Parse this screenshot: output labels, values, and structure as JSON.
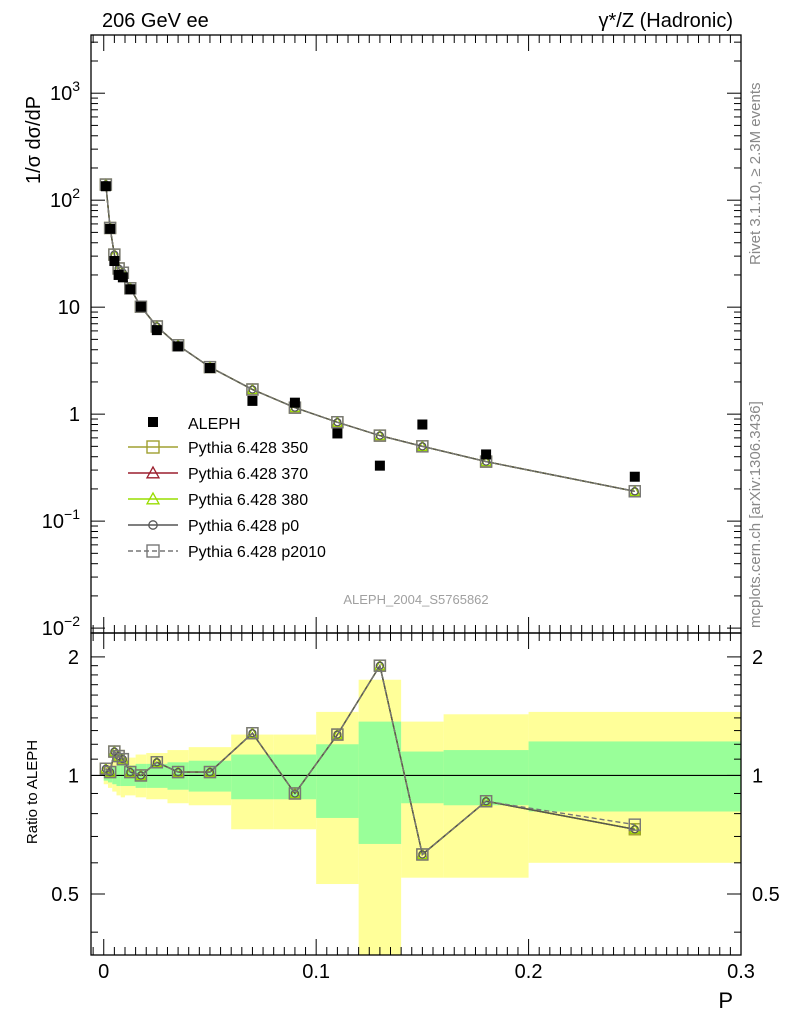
{
  "header": {
    "left": "206 GeV ee",
    "right": "γ*/Z (Hadronic)"
  },
  "side": {
    "rivet": "Rivet 3.1.10, ≥ 2.3M events",
    "mcplots": "mcplots.cern.ch [arXiv:1306.3436]"
  },
  "analysis_label": "ALEPH_2004_S5765862",
  "colors": {
    "green_band": "#99ff99",
    "yellow_band": "#ffff99",
    "p350": "#a0a030",
    "p370": "#9b1f2e",
    "p380": "#99dd00",
    "p0": "#555555",
    "p2010": "#777777"
  },
  "chart_data": {
    "type": "line",
    "main": {
      "ylabel": "1/σ dσ/dP",
      "yscale": "log",
      "ylim": [
        0.009,
        3500
      ],
      "yticks": [
        {
          "v": 0.01,
          "base": "10",
          "exp": "−2"
        },
        {
          "v": 0.1,
          "base": "10",
          "exp": "−1"
        },
        {
          "v": 1,
          "base": "1",
          "exp": ""
        },
        {
          "v": 10,
          "base": "10",
          "exp": ""
        },
        {
          "v": 100,
          "base": "10",
          "exp": "2"
        },
        {
          "v": 1000,
          "base": "10",
          "exp": "3"
        }
      ],
      "data": {
        "name": "ALEPH",
        "x": [
          0.001,
          0.003,
          0.005,
          0.007,
          0.009,
          0.0125,
          0.0175,
          0.025,
          0.035,
          0.05,
          0.07,
          0.09,
          0.11,
          0.13,
          0.15,
          0.18,
          0.25
        ],
        "y": [
          135,
          54,
          27,
          20,
          19,
          14.7,
          10.1,
          6.1,
          4.3,
          2.7,
          1.33,
          1.28,
          0.66,
          0.33,
          0.8,
          0.42,
          0.26
        ]
      },
      "series": [
        {
          "name": "Pythia 6.428 350",
          "marker": "square",
          "color": "p350",
          "dash": false
        },
        {
          "name": "Pythia 6.428 370",
          "marker": "triangle",
          "color": "p370",
          "dash": false
        },
        {
          "name": "Pythia 6.428 380",
          "marker": "triangle",
          "color": "p380",
          "dash": false
        },
        {
          "name": "Pythia 6.428 p0",
          "marker": "circle",
          "color": "p0",
          "dash": false
        },
        {
          "name": "Pythia 6.428 p2010",
          "marker": "square",
          "color": "p2010",
          "dash": true
        }
      ],
      "mc_y": [
        140,
        55,
        31,
        23,
        21,
        15,
        10.1,
        6.6,
        4.4,
        2.75,
        1.7,
        1.15,
        0.84,
        0.63,
        0.5,
        0.36,
        0.19
      ]
    },
    "ratio": {
      "ylabel": "Ratio to ALEPH",
      "ylim": [
        0.35,
        2.3
      ],
      "yticks": [
        0.5,
        1,
        2
      ],
      "ratio_y": [
        1.04,
        1.02,
        1.15,
        1.12,
        1.1,
        1.02,
        1.0,
        1.08,
        1.02,
        1.02,
        1.28,
        0.9,
        1.27,
        1.9,
        0.63,
        0.86,
        0.73
      ],
      "ratio_y_p2010": [
        1.04,
        1.02,
        1.15,
        1.12,
        1.1,
        1.02,
        1.0,
        1.08,
        1.02,
        1.02,
        1.28,
        0.9,
        1.27,
        1.9,
        0.63,
        0.86,
        0.75
      ],
      "bands": [
        {
          "x0": 0.0,
          "x1": 0.002,
          "g0": 0.97,
          "g1": 1.03,
          "y0": 0.95,
          "y1": 1.05
        },
        {
          "x0": 0.002,
          "x1": 0.004,
          "g0": 0.96,
          "g1": 1.04,
          "y0": 0.93,
          "y1": 1.07
        },
        {
          "x0": 0.004,
          "x1": 0.006,
          "g0": 0.95,
          "g1": 1.05,
          "y0": 0.91,
          "y1": 1.09
        },
        {
          "x0": 0.006,
          "x1": 0.008,
          "g0": 0.94,
          "g1": 1.06,
          "y0": 0.89,
          "y1": 1.11
        },
        {
          "x0": 0.008,
          "x1": 0.01,
          "g0": 0.94,
          "g1": 1.06,
          "y0": 0.88,
          "y1": 1.12
        },
        {
          "x0": 0.01,
          "x1": 0.015,
          "g0": 0.94,
          "g1": 1.06,
          "y0": 0.89,
          "y1": 1.11
        },
        {
          "x0": 0.015,
          "x1": 0.02,
          "g0": 0.93,
          "g1": 1.07,
          "y0": 0.88,
          "y1": 1.13
        },
        {
          "x0": 0.02,
          "x1": 0.03,
          "g0": 0.93,
          "g1": 1.07,
          "y0": 0.87,
          "y1": 1.14
        },
        {
          "x0": 0.03,
          "x1": 0.04,
          "g0": 0.92,
          "g1": 1.08,
          "y0": 0.85,
          "y1": 1.16
        },
        {
          "x0": 0.04,
          "x1": 0.06,
          "g0": 0.91,
          "g1": 1.09,
          "y0": 0.84,
          "y1": 1.18
        },
        {
          "x0": 0.06,
          "x1": 0.08,
          "g0": 0.87,
          "g1": 1.13,
          "y0": 0.73,
          "y1": 1.27
        },
        {
          "x0": 0.08,
          "x1": 0.1,
          "g0": 0.87,
          "g1": 1.13,
          "y0": 0.73,
          "y1": 1.27
        },
        {
          "x0": 0.1,
          "x1": 0.12,
          "g0": 0.78,
          "g1": 1.2,
          "y0": 0.53,
          "y1": 1.45
        },
        {
          "x0": 0.12,
          "x1": 0.14,
          "g0": 0.67,
          "g1": 1.37,
          "y0": 0.2,
          "y1": 1.75
        },
        {
          "x0": 0.14,
          "x1": 0.16,
          "g0": 0.85,
          "g1": 1.15,
          "y0": 0.55,
          "y1": 1.37
        },
        {
          "x0": 0.16,
          "x1": 0.2,
          "g0": 0.84,
          "g1": 1.16,
          "y0": 0.55,
          "y1": 1.43
        },
        {
          "x0": 0.2,
          "x1": 0.3,
          "g0": 0.81,
          "g1": 1.22,
          "y0": 0.6,
          "y1": 1.45
        }
      ]
    },
    "xlabel": "P",
    "xlim": [
      -0.006,
      0.3
    ],
    "xticks": [
      "0",
      "0.1",
      "0.2",
      "0.3"
    ],
    "legend_position": "lower-left"
  }
}
